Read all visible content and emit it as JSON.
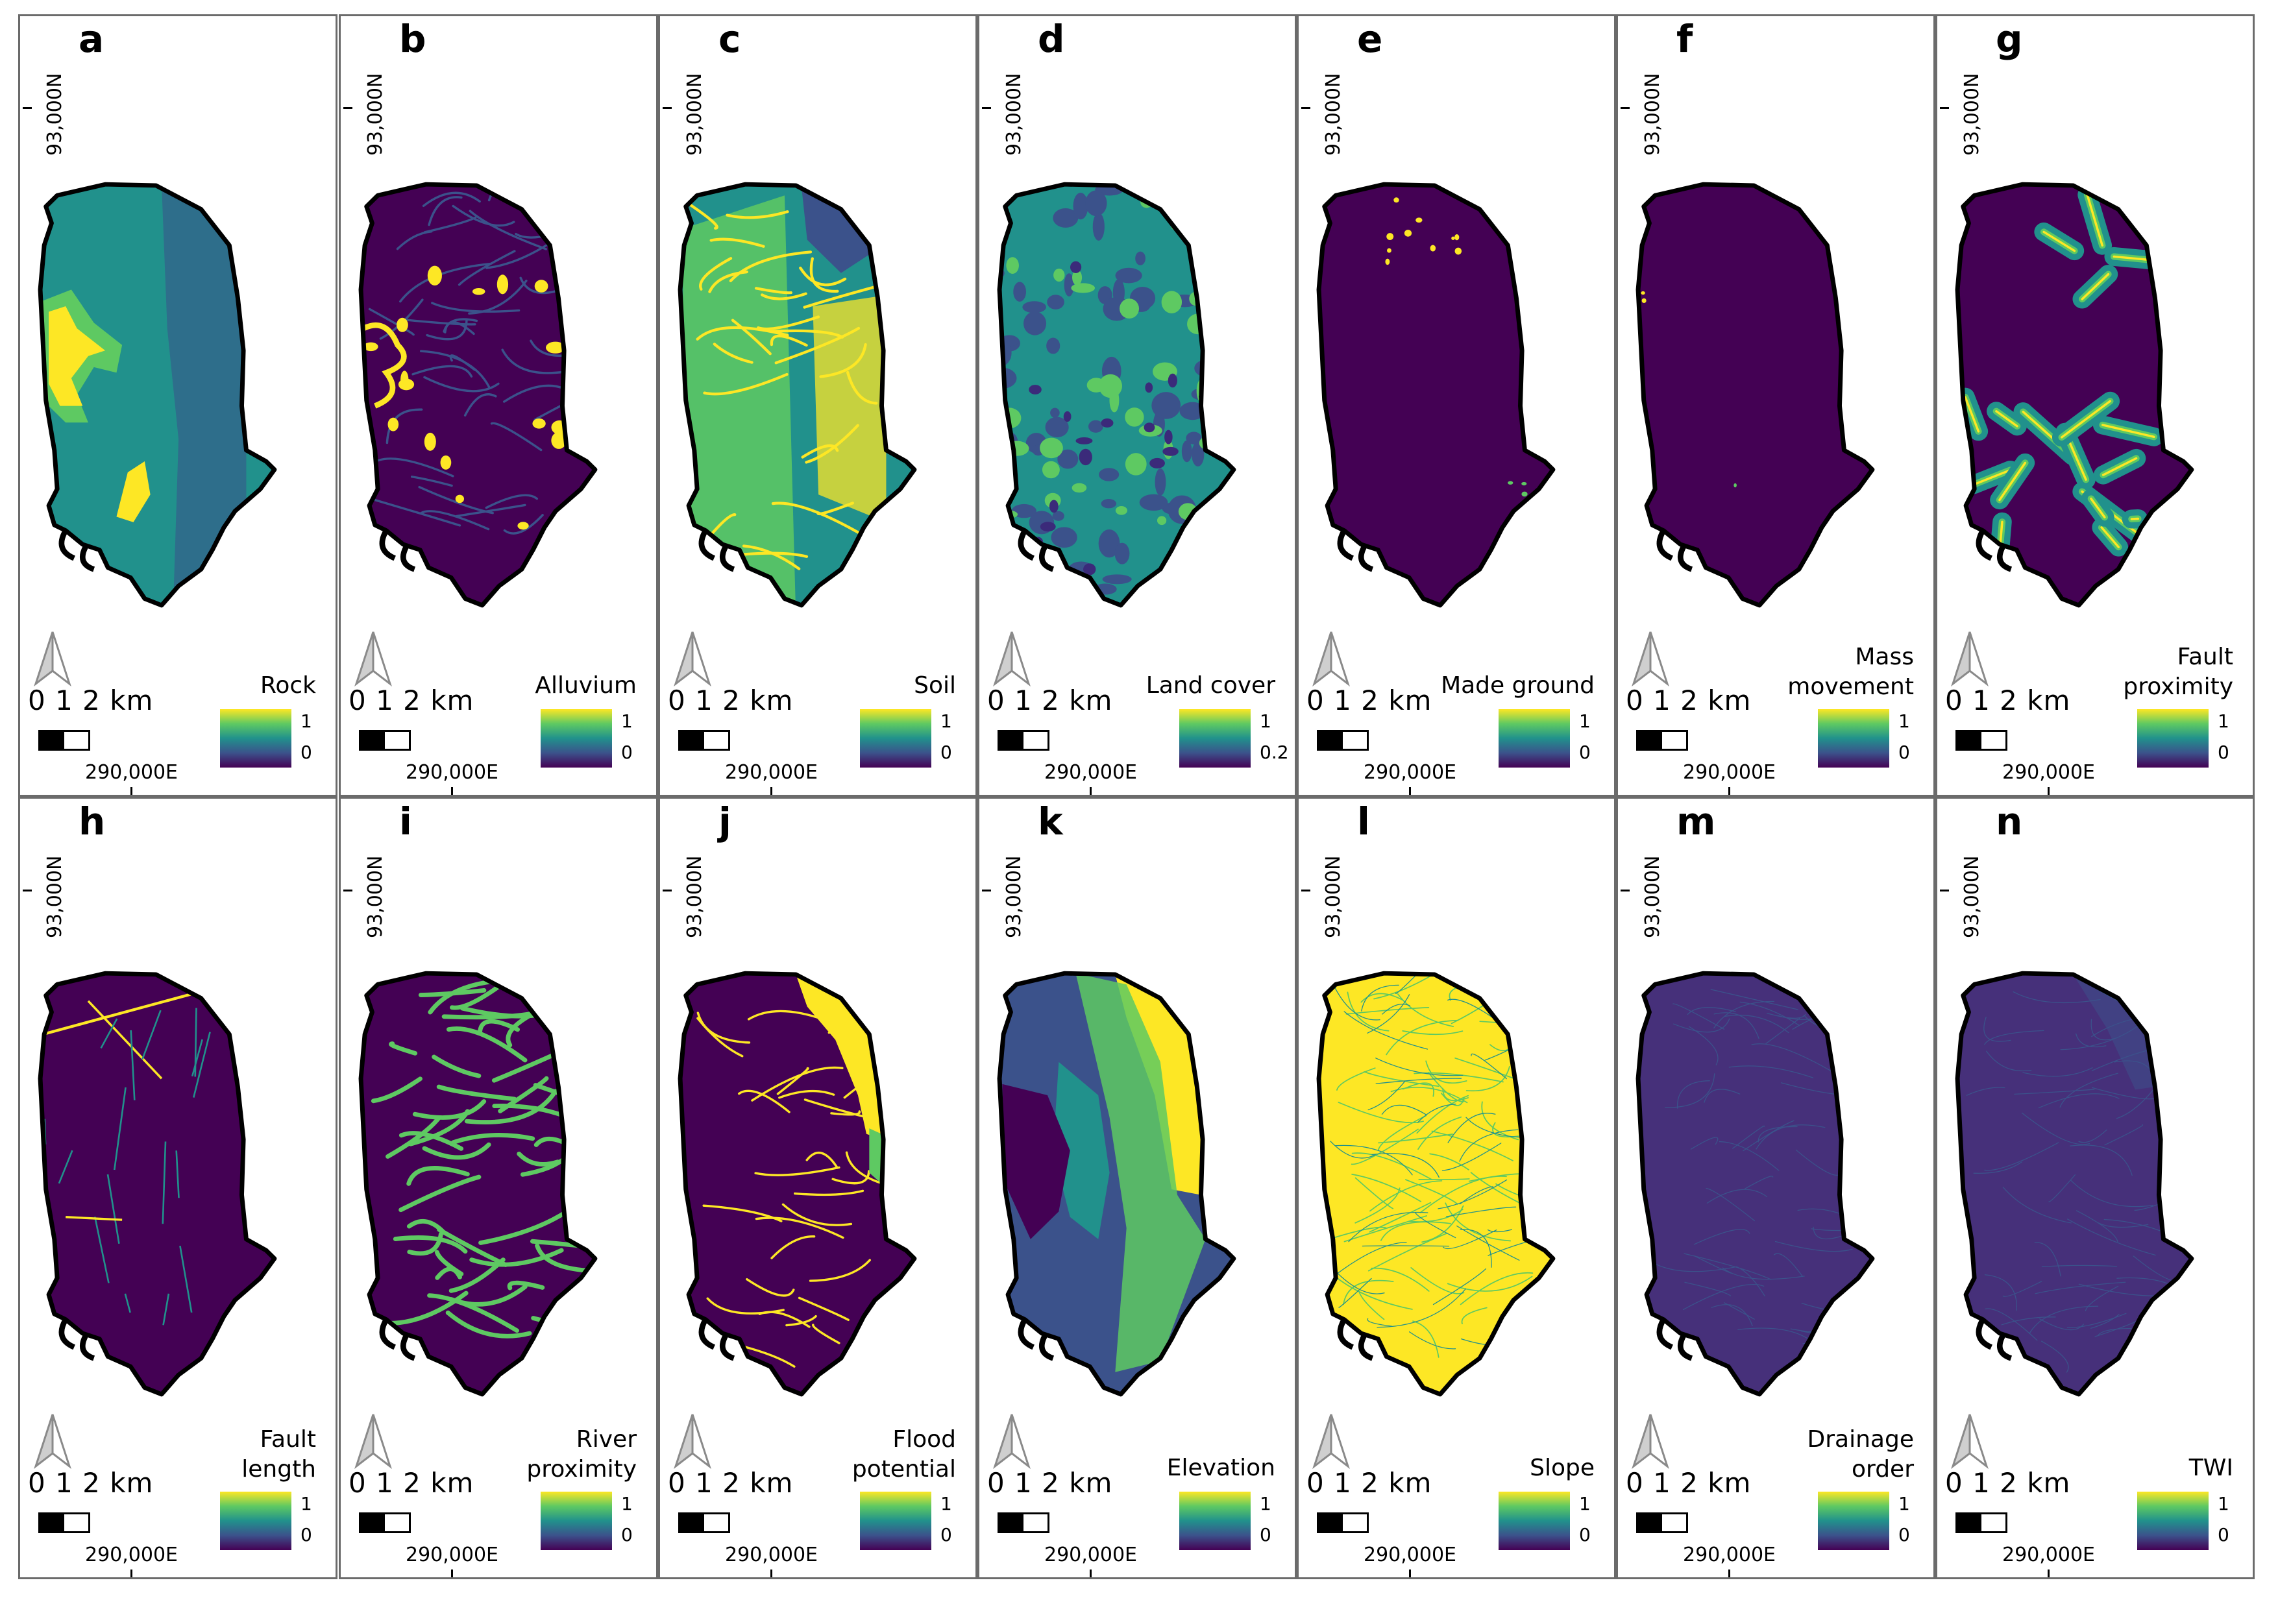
{
  "figure": {
    "common": {
      "northing_label": "93,000N",
      "easting_label": "290,000E",
      "scale_label": "0 1 2 km"
    },
    "colormap": {
      "yellow": "#fde725",
      "green": "#5ec962",
      "teal": "#21918c",
      "blue": "#3b528b",
      "purple": "#440154",
      "outline": "#000000"
    },
    "panels": [
      {
        "letter": "a",
        "title_lines": [
          "Rock"
        ],
        "legend_max": "1",
        "legend_min": "0",
        "style": "rock"
      },
      {
        "letter": "b",
        "title_lines": [
          "Alluvium"
        ],
        "legend_max": "1",
        "legend_min": "0",
        "style": "alluvium"
      },
      {
        "letter": "c",
        "title_lines": [
          "Soil"
        ],
        "legend_max": "1",
        "legend_min": "0",
        "style": "soil"
      },
      {
        "letter": "d",
        "title_lines": [
          "Land cover"
        ],
        "legend_max": "1",
        "legend_min": "0.2",
        "style": "landcover"
      },
      {
        "letter": "e",
        "title_lines": [
          "Made ground"
        ],
        "legend_max": "1",
        "legend_min": "0",
        "style": "made"
      },
      {
        "letter": "f",
        "title_lines": [
          "Mass",
          "movement"
        ],
        "legend_max": "1",
        "legend_min": "0",
        "style": "mass"
      },
      {
        "letter": "g",
        "title_lines": [
          "Fault",
          "proximity"
        ],
        "legend_max": "1",
        "legend_min": "0",
        "style": "faultprox"
      },
      {
        "letter": "h",
        "title_lines": [
          "Fault",
          "length"
        ],
        "legend_max": "1",
        "legend_min": "0",
        "style": "faultlen"
      },
      {
        "letter": "i",
        "title_lines": [
          "River",
          "proximity"
        ],
        "legend_max": "1",
        "legend_min": "0",
        "style": "riverprox"
      },
      {
        "letter": "j",
        "title_lines": [
          "Flood",
          "potential"
        ],
        "legend_max": "1",
        "legend_min": "0",
        "style": "flood"
      },
      {
        "letter": "k",
        "title_lines": [
          "Elevation"
        ],
        "legend_max": "1",
        "legend_min": "0",
        "style": "elevation"
      },
      {
        "letter": "l",
        "title_lines": [
          "Slope"
        ],
        "legend_max": "1",
        "legend_min": "0",
        "style": "slope"
      },
      {
        "letter": "m",
        "title_lines": [
          "Drainage",
          "order"
        ],
        "legend_max": "1",
        "legend_min": "0",
        "style": "drainage"
      },
      {
        "letter": "n",
        "title_lines": [
          "TWI"
        ],
        "legend_max": "1",
        "legend_min": "0",
        "style": "twi"
      }
    ]
  }
}
